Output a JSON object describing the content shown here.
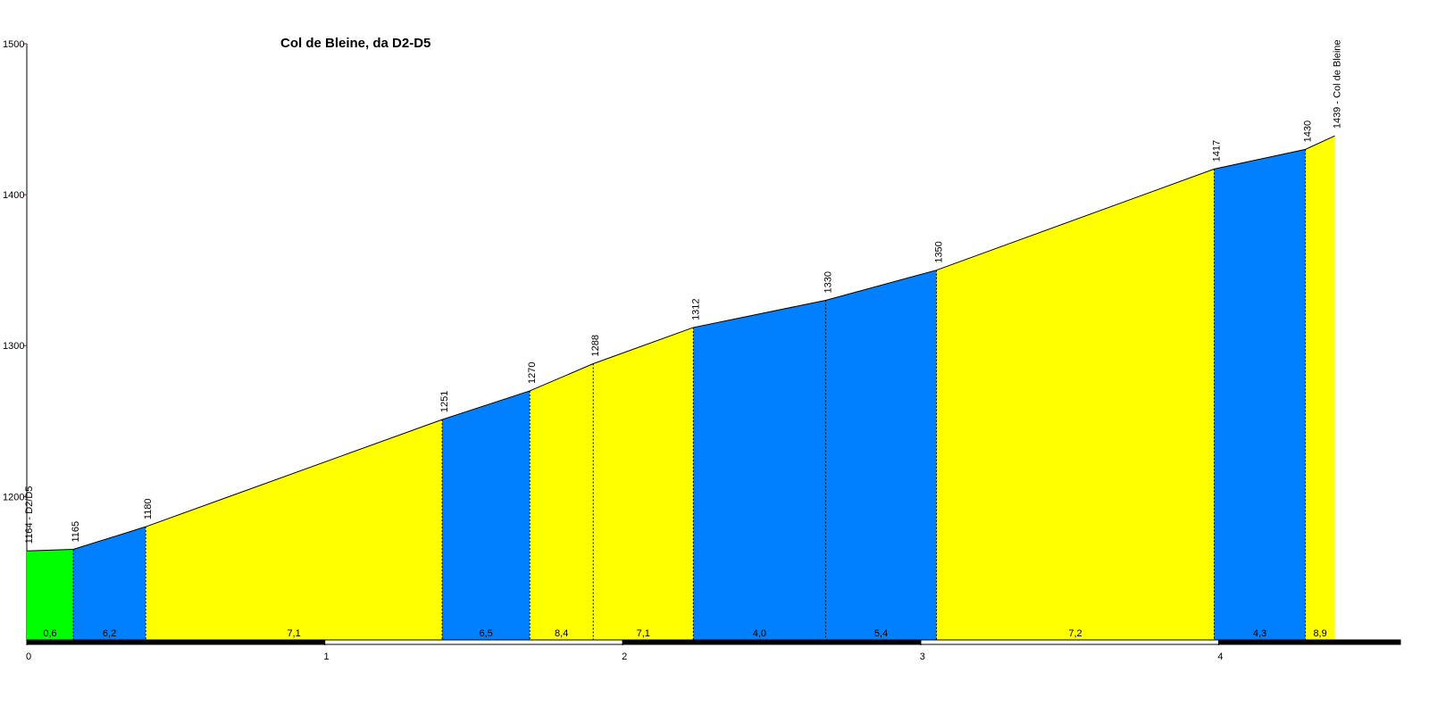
{
  "chart_data": {
    "type": "profile",
    "title": "Col de Bleine, da D2-D5",
    "x": [
      0,
      0.156,
      0.399,
      1.394,
      1.688,
      1.901,
      2.237,
      2.681,
      3.053,
      3.985,
      4.291,
      4.39
    ],
    "values": [
      1164,
      1165,
      1180,
      1251,
      1270,
      1288,
      1312,
      1330,
      1350,
      1417,
      1430,
      1439
    ],
    "value_labels": [
      "1164 - D2/D5",
      "1165",
      "1180",
      "1251",
      "1270",
      "1288",
      "1312",
      "1330",
      "1350",
      "1417",
      "1430",
      "1439 - Col de Bleine"
    ],
    "segments": {
      "values": [
        0.6,
        6.2,
        7.1,
        6.5,
        8.4,
        7.1,
        4.0,
        5.4,
        7.2,
        4.3,
        8.9
      ],
      "value_labels": [
        "0,6",
        "6,2",
        "7,1",
        "6,5",
        "8,4",
        "7,1",
        "4,0",
        "5,4",
        "7,2",
        "4,3",
        "8,9"
      ],
      "colors": [
        "#00ff00",
        "#0080ff",
        "#ffff00",
        "#0080ff",
        "#ffff00",
        "#ffff00",
        "#0080ff",
        "#0080ff",
        "#ffff00",
        "#0080ff",
        "#ffff00"
      ]
    },
    "xlim": [
      0,
      4.61
    ],
    "ylim": [
      1105,
      1500
    ],
    "xticks": [
      0,
      1,
      2,
      3,
      4
    ],
    "yticks": [
      1200,
      1300,
      1400,
      1500
    ]
  }
}
